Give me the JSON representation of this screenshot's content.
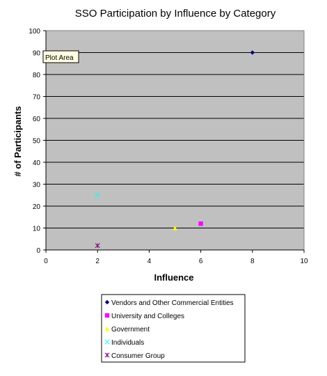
{
  "tooltip": "Plot Area",
  "chart_data": {
    "type": "scatter",
    "title": "SSO Participation by Influence by Category",
    "xlabel": "Influence",
    "ylabel": "# of Participants",
    "xlim": [
      0,
      10
    ],
    "ylim": [
      0,
      100
    ],
    "xticks": [
      "0",
      "2",
      "4",
      "6",
      "8",
      "10"
    ],
    "yticks": [
      "0",
      "10",
      "20",
      "30",
      "40",
      "50",
      "60",
      "70",
      "80",
      "90",
      "100"
    ],
    "grid": "horizontal",
    "legend_position": "bottom",
    "plot_background": "#c0c0c0",
    "series": [
      {
        "name": "Vendors and Other Commercial Entities",
        "marker": "diamond",
        "color": "#000080",
        "points": [
          {
            "x": 8,
            "y": 90
          }
        ]
      },
      {
        "name": "University and Colleges",
        "marker": "square",
        "color": "#ff00ff",
        "points": [
          {
            "x": 6,
            "y": 12
          }
        ]
      },
      {
        "name": "Government",
        "marker": "triangle",
        "color": "#ffff00",
        "points": [
          {
            "x": 5,
            "y": 10
          }
        ]
      },
      {
        "name": "Individuals",
        "marker": "x",
        "color": "#00ffff",
        "points": [
          {
            "x": 2,
            "y": 25
          }
        ]
      },
      {
        "name": "Consumer Group",
        "marker": "star",
        "color": "#800080",
        "points": [
          {
            "x": 2,
            "y": 2
          }
        ]
      }
    ]
  }
}
